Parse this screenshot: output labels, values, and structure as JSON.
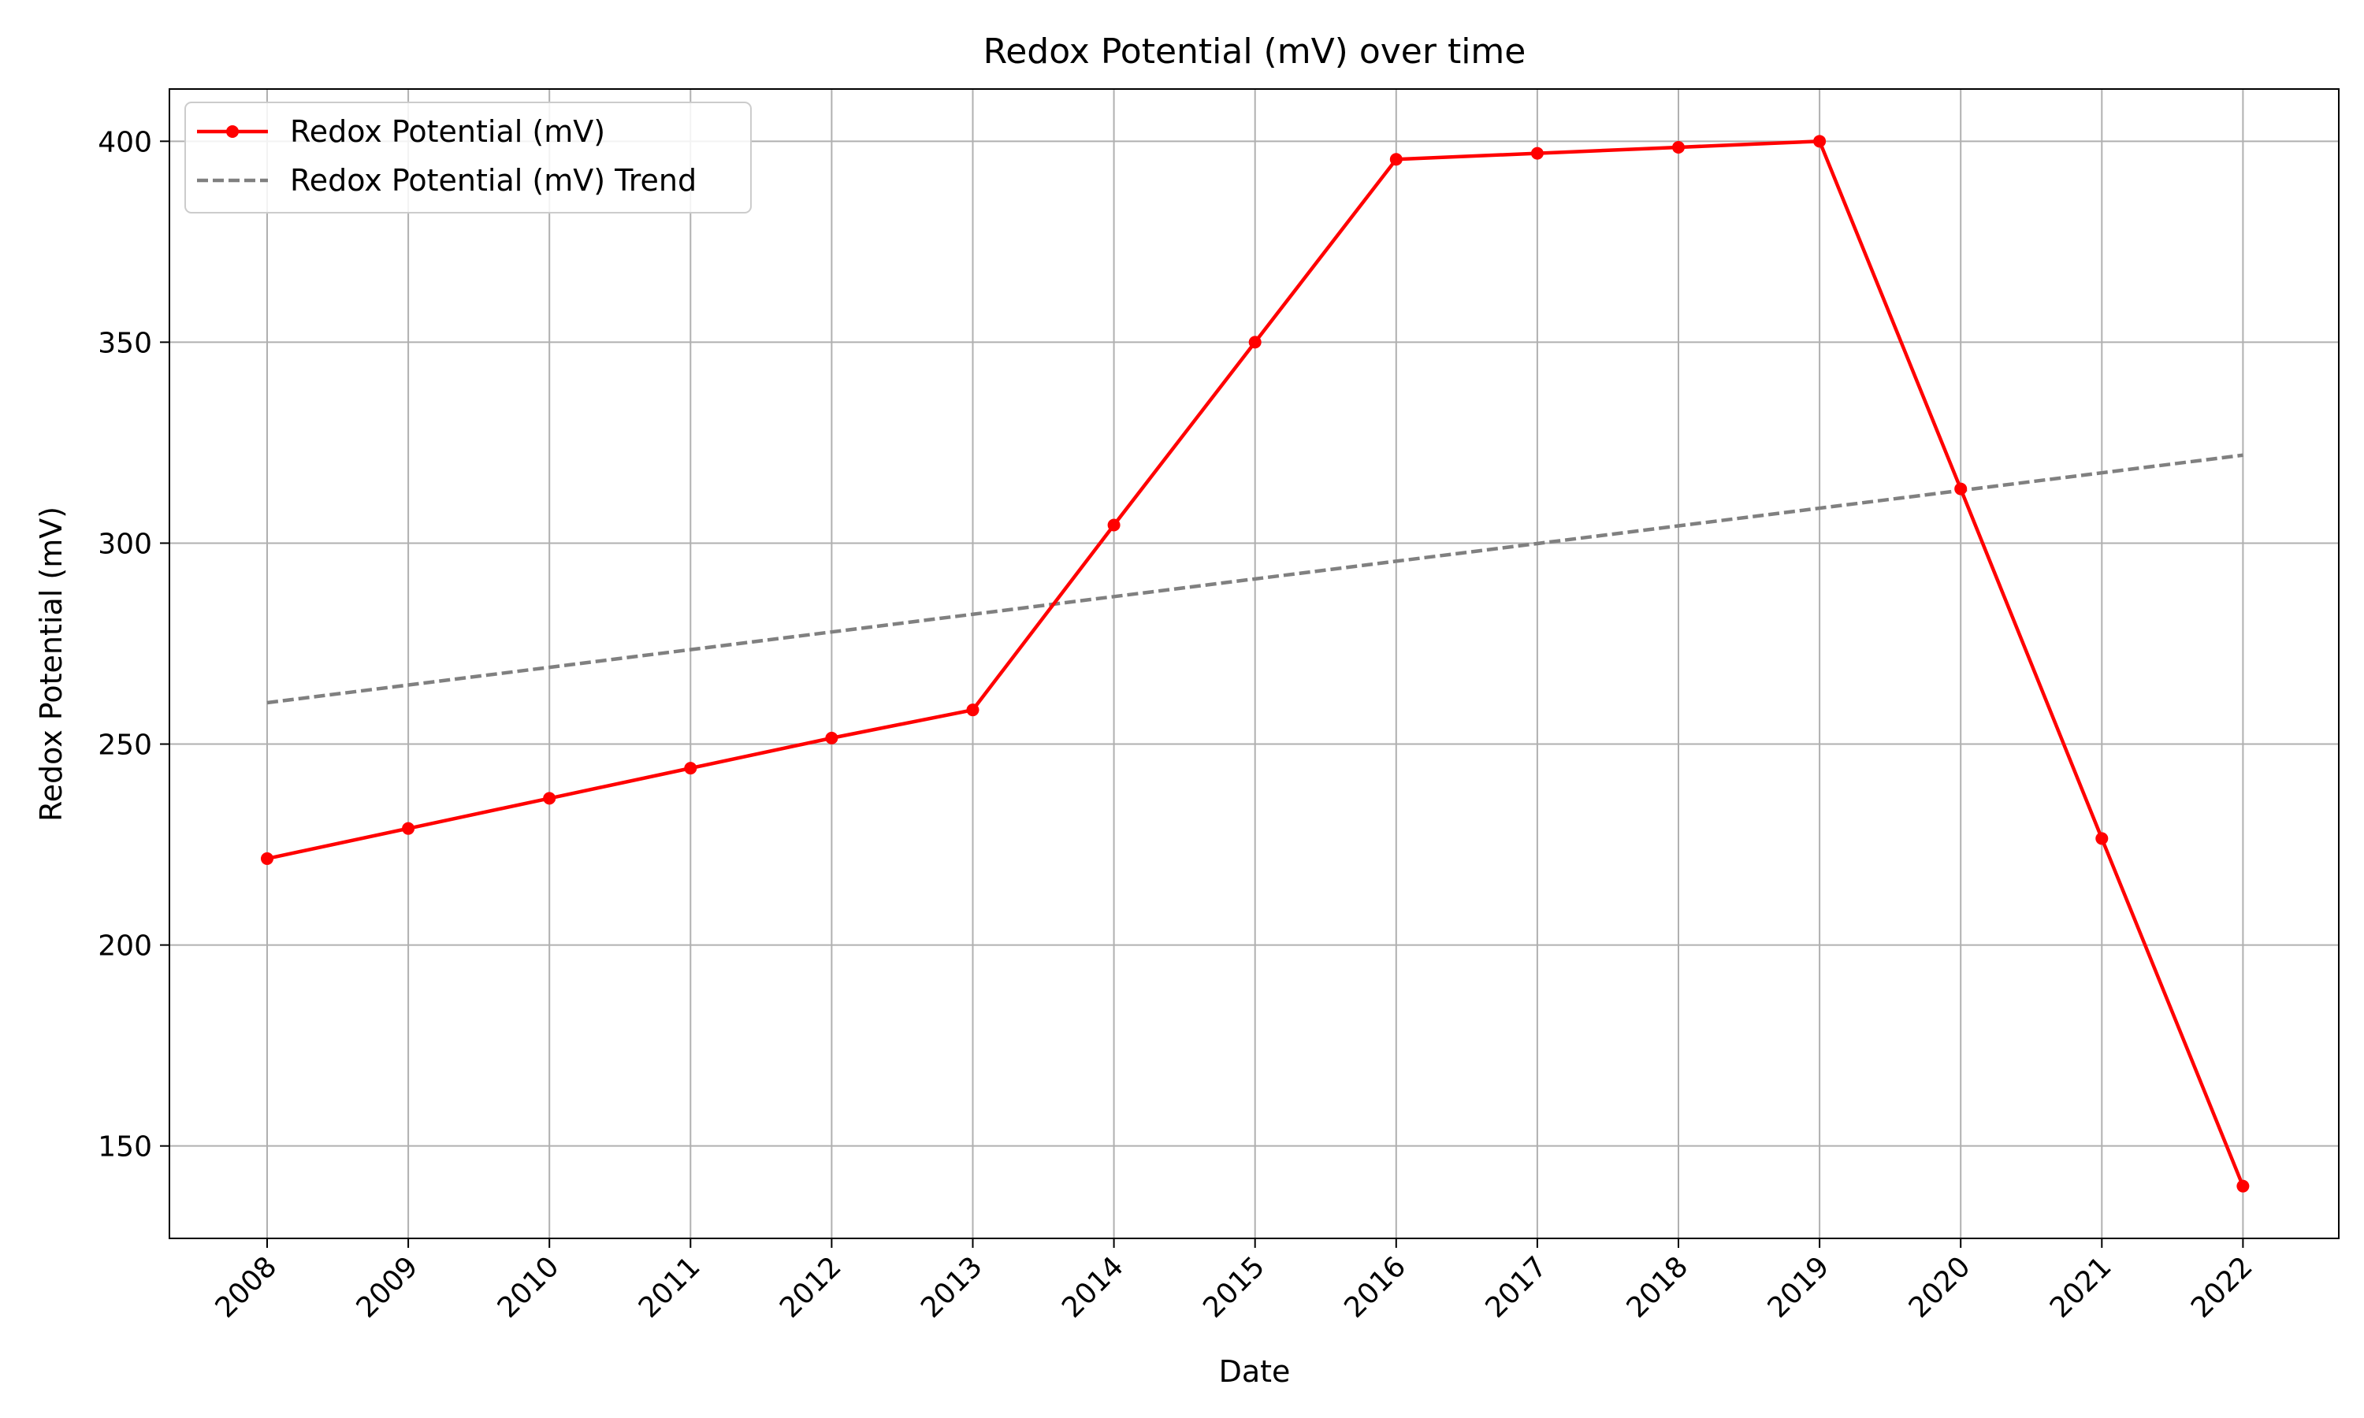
{
  "chart_data": {
    "type": "line",
    "title": "Redox Potential (mV) over time",
    "xlabel": "Date",
    "ylabel": "Redox Potential (mV)",
    "x": [
      "2008",
      "2009",
      "2010",
      "2011",
      "2012",
      "2013",
      "2014",
      "2015",
      "2016",
      "2017",
      "2018",
      "2019",
      "2020",
      "2021",
      "2022"
    ],
    "ylim": [
      127,
      413
    ],
    "yticks": [
      150,
      200,
      250,
      300,
      350,
      400
    ],
    "grid": true,
    "legend_position": "top-left",
    "series": [
      {
        "name": "Redox Potential (mV)",
        "style": "solid-with-markers",
        "color": "#ff0000",
        "values": [
          221.5,
          229.0,
          236.5,
          244.0,
          251.5,
          258.5,
          304.5,
          350.0,
          395.5,
          397.0,
          398.5,
          400.0,
          313.5,
          226.5,
          140.0
        ]
      },
      {
        "name": "Redox Potential (mV) Trend",
        "style": "dashed",
        "color": "#808080",
        "values": [
          260.3,
          264.7,
          269.1,
          273.5,
          277.9,
          282.3,
          286.7,
          291.1,
          295.5,
          299.9,
          304.3,
          308.7,
          313.1,
          317.5,
          321.9
        ]
      }
    ]
  }
}
